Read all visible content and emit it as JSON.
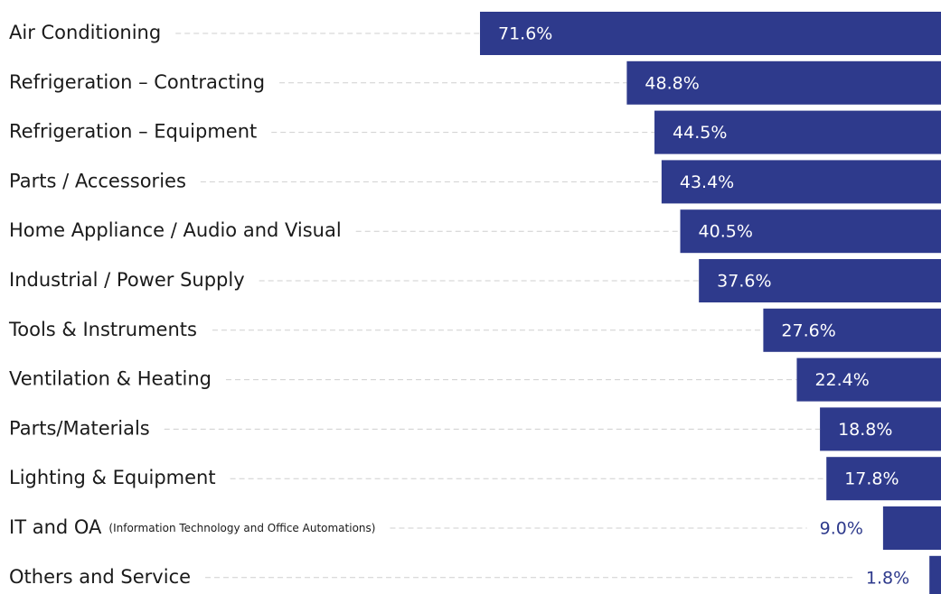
{
  "chart_data": {
    "type": "bar",
    "orientation": "horizontal",
    "categories": [
      "Air Conditioning",
      "Refrigeration – Contracting",
      "Refrigeration – Equipment",
      "Parts / Accessories",
      "Home Appliance / Audio and Visual",
      "Industrial / Power Supply",
      "Tools & Instruments",
      "Ventilation & Heating",
      "Parts/Materials",
      "Lighting & Equipment",
      "IT and OA",
      "Others and Service"
    ],
    "category_notes": [
      null,
      null,
      null,
      null,
      null,
      null,
      null,
      null,
      null,
      null,
      "(Information Technology and Office Automations)",
      null
    ],
    "values": [
      71.6,
      48.8,
      44.5,
      43.4,
      40.5,
      37.6,
      27.6,
      22.4,
      18.8,
      17.8,
      9.0,
      1.8
    ],
    "value_labels": [
      "71.6%",
      "48.8%",
      "44.5%",
      "43.4%",
      "40.5%",
      "37.6%",
      "27.6%",
      "22.4%",
      "18.8%",
      "17.8%",
      "9.0%",
      "1.8%"
    ],
    "color": "#2e3a8c"
  }
}
